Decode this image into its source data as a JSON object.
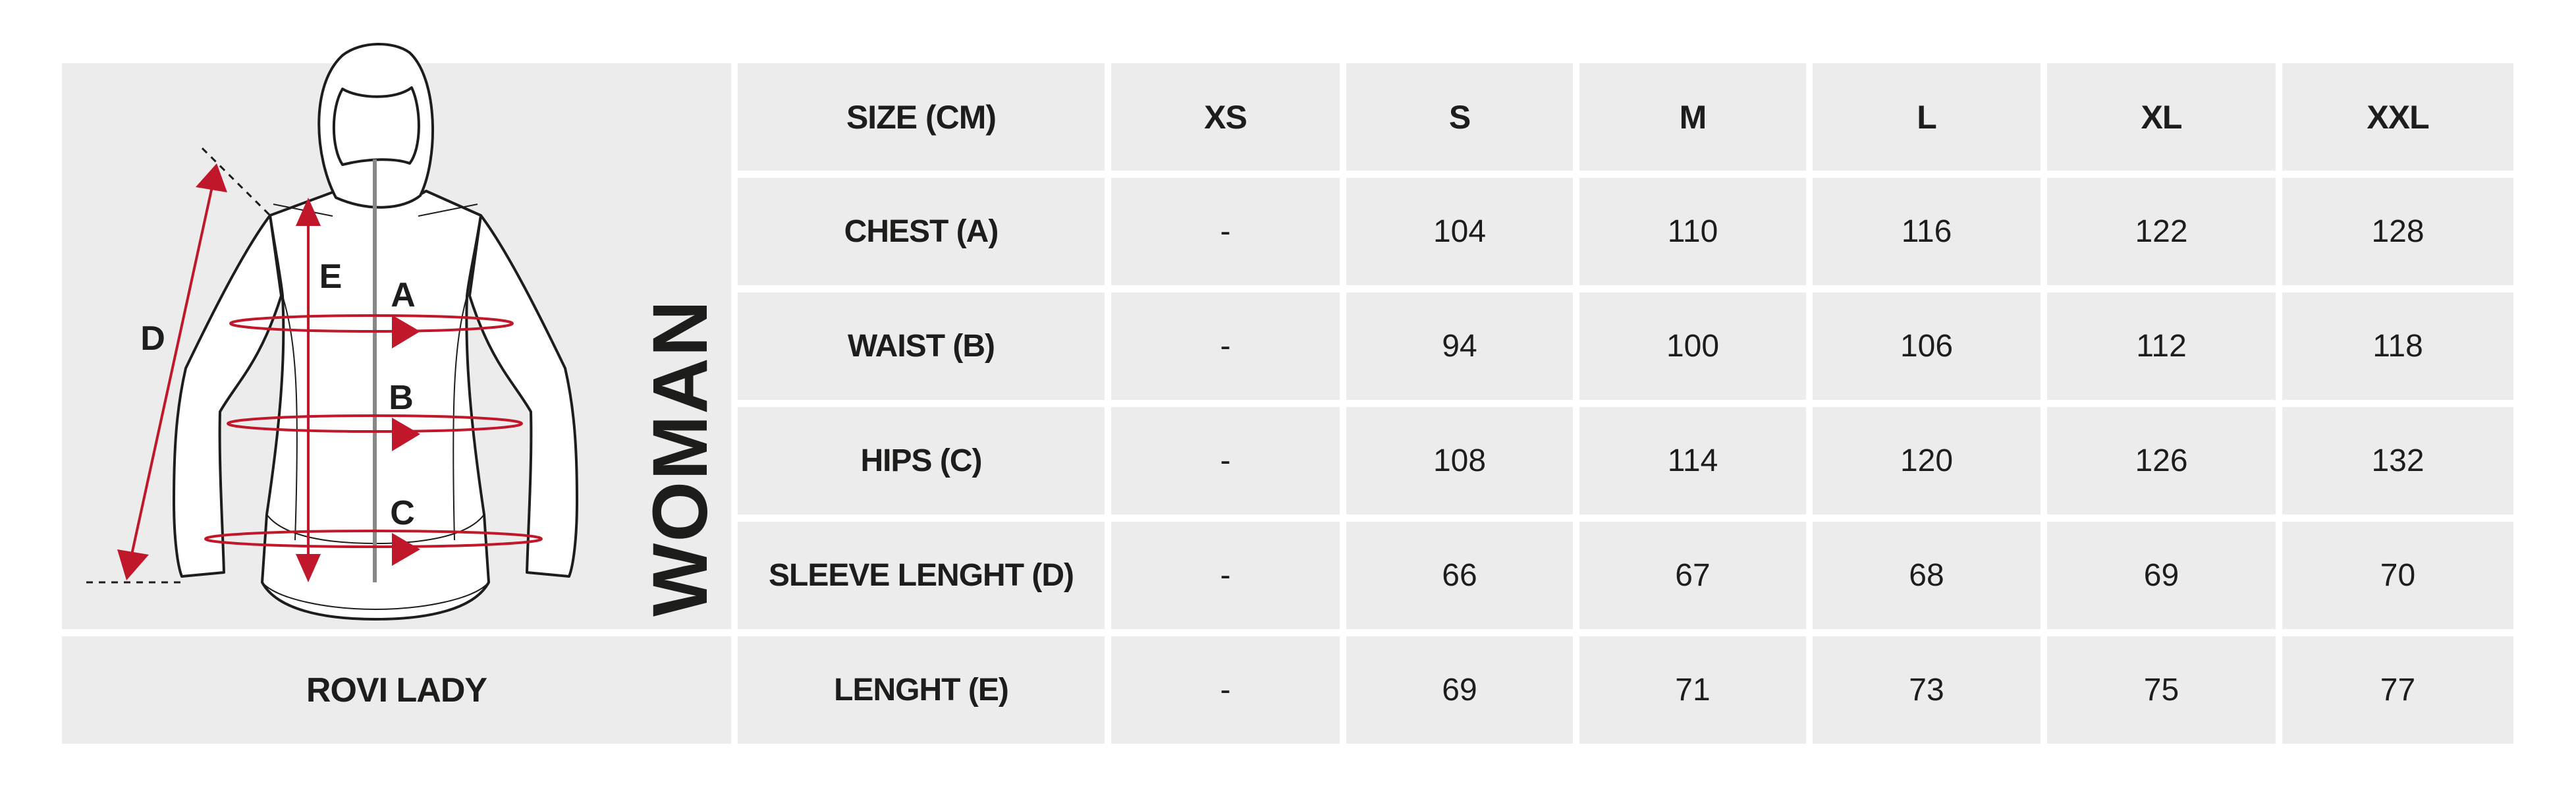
{
  "diagram": {
    "letters": {
      "a": "A",
      "b": "B",
      "c": "C",
      "d": "D",
      "e": "E"
    },
    "accent_color": "#c0182a",
    "gender_label": "WOMAN"
  },
  "model_name": "ROVI LADY",
  "table": {
    "header": [
      "SIZE (CM)",
      "XS",
      "S",
      "M",
      "L",
      "XL",
      "XXL"
    ],
    "rows": [
      {
        "label": "CHEST (A)",
        "values": [
          "-",
          "104",
          "110",
          "116",
          "122",
          "128"
        ]
      },
      {
        "label": "WAIST (B)",
        "values": [
          "-",
          "94",
          "100",
          "106",
          "112",
          "118"
        ]
      },
      {
        "label": "HIPS (C)",
        "values": [
          "-",
          "108",
          "114",
          "120",
          "126",
          "132"
        ]
      },
      {
        "label": "SLEEVE LENGHT (D)",
        "values": [
          "-",
          "66",
          "67",
          "68",
          "69",
          "70"
        ]
      },
      {
        "label": "LENGHT (E)",
        "values": [
          "-",
          "69",
          "71",
          "73",
          "75",
          "77"
        ]
      }
    ]
  }
}
